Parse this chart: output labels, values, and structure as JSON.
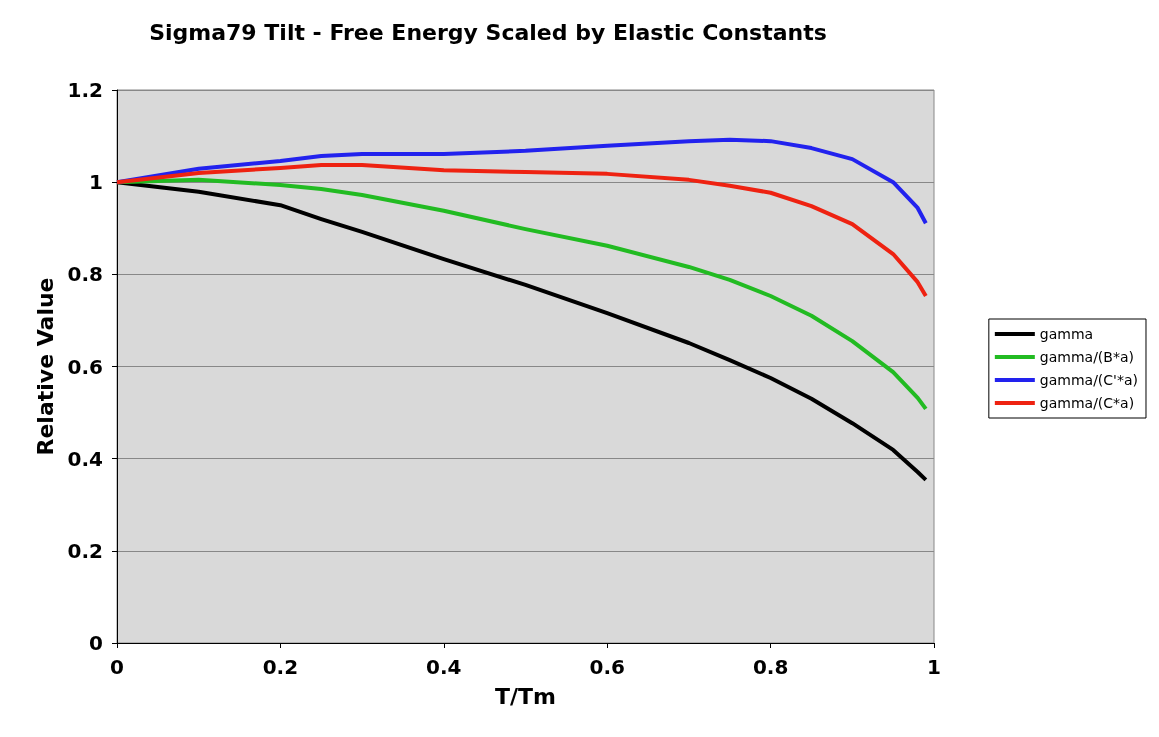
{
  "chart_data": {
    "type": "line",
    "title": "Sigma79 Tilt - Free Energy Scaled by Elastic Constants",
    "xlabel": "T/Tm",
    "ylabel": "Relative Value",
    "x": [
      0,
      0.1,
      0.2,
      0.25,
      0.3,
      0.4,
      0.5,
      0.6,
      0.7,
      0.75,
      0.8,
      0.85,
      0.9,
      0.95,
      0.98,
      0.99
    ],
    "series": [
      {
        "name": "gamma",
        "color": "#000000",
        "values": [
          1,
          0.979,
          0.95,
          0.92,
          0.892,
          0.833,
          0.777,
          0.716,
          0.651,
          0.614,
          0.575,
          0.53,
          0.477,
          0.419,
          0.371,
          0.354
        ]
      },
      {
        "name": "gamma/(B*a)",
        "color": "#22bb22",
        "values": [
          1,
          1.005,
          0.994,
          0.985,
          0.972,
          0.938,
          0.898,
          0.862,
          0.816,
          0.788,
          0.753,
          0.71,
          0.655,
          0.588,
          0.532,
          0.508
        ]
      },
      {
        "name": "gamma/(C'*a)",
        "color": "#2222ee",
        "values": [
          1,
          1.029,
          1.046,
          1.057,
          1.061,
          1.061,
          1.068,
          1.079,
          1.089,
          1.092,
          1.089,
          1.074,
          1.05,
          1.0,
          0.944,
          0.911
        ]
      },
      {
        "name": "gamma/(C*a)",
        "color": "#ee2211",
        "values": [
          1,
          1.02,
          1.031,
          1.037,
          1.037,
          1.026,
          1.022,
          1.018,
          1.005,
          0.992,
          0.977,
          0.948,
          0.909,
          0.844,
          0.783,
          0.753
        ]
      }
    ],
    "xlim": [
      0,
      1
    ],
    "xticks": [
      0,
      0.2,
      0.4,
      0.6,
      0.8,
      1
    ],
    "ylim": [
      0,
      1.2
    ],
    "yticks": [
      0,
      0.2,
      0.4,
      0.6,
      0.8,
      1,
      1.2
    ],
    "grid": "y",
    "legend": "right",
    "marker": "none",
    "line_style": "solid"
  }
}
